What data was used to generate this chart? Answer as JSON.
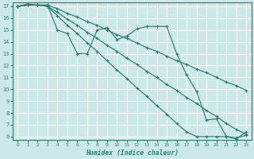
{
  "xlabel": "Humidex (Indice chaleur)",
  "bg_color": "#cce8e8",
  "grid_color": "#ffffff",
  "line_color": "#2e7b6e",
  "xlim": [
    -0.5,
    23.5
  ],
  "ylim": [
    5.7,
    17.3
  ],
  "yticks": [
    6,
    7,
    8,
    9,
    10,
    11,
    12,
    13,
    14,
    15,
    16,
    17
  ],
  "xticks": [
    0,
    1,
    2,
    3,
    4,
    5,
    6,
    7,
    8,
    9,
    10,
    11,
    12,
    13,
    14,
    15,
    16,
    17,
    18,
    19,
    20,
    21,
    22,
    23
  ],
  "lines": [
    [
      17.0,
      17.2,
      17.1,
      17.1,
      15.0,
      14.7,
      13.0,
      13.0,
      15.0,
      15.2,
      14.2,
      14.5,
      15.1,
      15.3,
      15.3,
      15.3,
      13.0,
      11.2,
      9.8,
      7.4,
      7.5,
      6.0,
      5.8,
      6.4
    ],
    [
      17.0,
      17.1,
      17.1,
      17.1,
      16.8,
      16.4,
      16.1,
      15.7,
      15.4,
      15.0,
      14.6,
      14.3,
      13.9,
      13.5,
      13.2,
      12.8,
      12.4,
      12.1,
      11.7,
      11.4,
      11.0,
      10.6,
      10.3,
      9.9
    ],
    [
      17.0,
      17.1,
      17.1,
      17.0,
      16.5,
      15.9,
      15.4,
      14.8,
      14.3,
      13.7,
      13.2,
      12.6,
      12.1,
      11.5,
      11.0,
      10.4,
      9.9,
      9.3,
      8.8,
      8.2,
      7.7,
      7.1,
      6.6,
      6.2
    ],
    [
      17.0,
      17.1,
      17.1,
      17.0,
      16.2,
      15.4,
      14.7,
      13.9,
      13.2,
      12.4,
      11.6,
      10.9,
      10.1,
      9.4,
      8.6,
      7.9,
      7.1,
      6.4,
      6.0,
      6.0,
      6.0,
      6.0,
      5.9,
      6.1
    ]
  ]
}
